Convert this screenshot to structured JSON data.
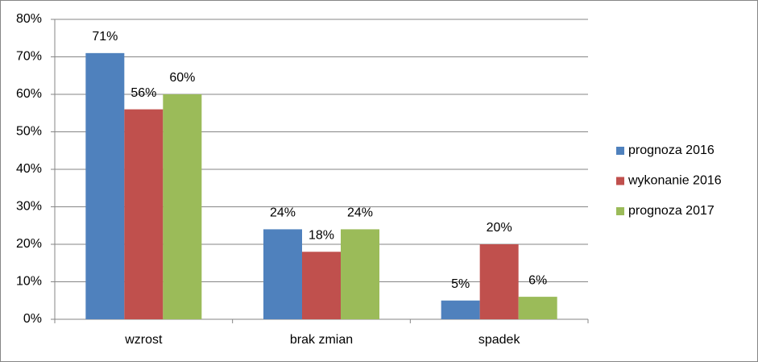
{
  "chart_data": {
    "type": "bar",
    "categories": [
      "wzrost",
      "brak zmian",
      "spadek"
    ],
    "series": [
      {
        "name": "prognoza 2016",
        "color": "#4f81bd",
        "values": [
          71,
          24,
          5
        ],
        "value_labels": [
          "71%",
          "24%",
          "5%"
        ]
      },
      {
        "name": "wykonanie 2016",
        "color": "#c0504d",
        "values": [
          56,
          18,
          20
        ],
        "value_labels": [
          "56%",
          "18%",
          "20%"
        ]
      },
      {
        "name": "prognoza 2017",
        "color": "#9bbb59",
        "values": [
          60,
          24,
          6
        ],
        "value_labels": [
          "60%",
          "24%",
          "6%"
        ]
      }
    ],
    "ylim": [
      0,
      80
    ],
    "yticks": [
      {
        "value": 0,
        "label": "0%"
      },
      {
        "value": 10,
        "label": "10%"
      },
      {
        "value": 20,
        "label": "20%"
      },
      {
        "value": 30,
        "label": "30%"
      },
      {
        "value": 40,
        "label": "40%"
      },
      {
        "value": 50,
        "label": "50%"
      },
      {
        "value": 60,
        "label": "60%"
      },
      {
        "value": 70,
        "label": "70%"
      },
      {
        "value": 80,
        "label": "80%"
      }
    ],
    "grid": true,
    "legend": "right"
  }
}
